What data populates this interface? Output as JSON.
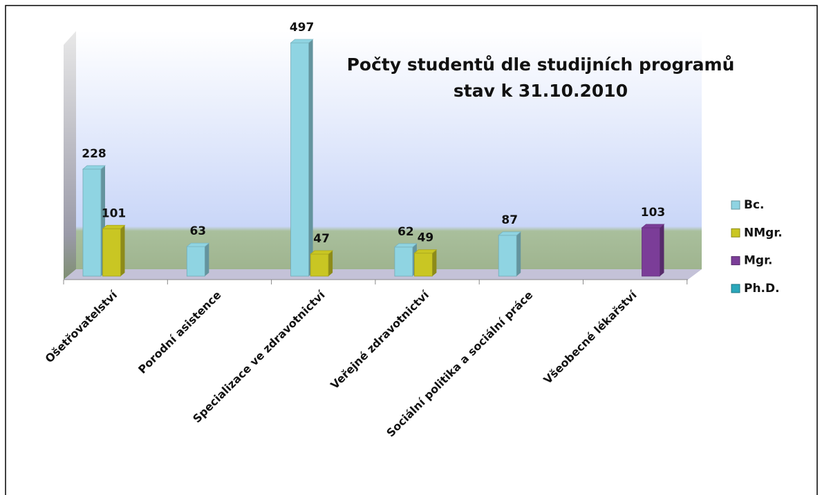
{
  "chart_data": {
    "type": "bar",
    "title": "Počty studentů dle studijních programů",
    "subtitle": "stav k 31.10.2010",
    "categories": [
      "Ošetřovatelství",
      "Porodní asistence",
      "Specializace ve zdravotnictví",
      "Veřejné zdravotnictví",
      "Sociální politika a sociální práce",
      "Všeobecné lékařství"
    ],
    "series": [
      {
        "name": "Bc.",
        "color": "#8fd4e2",
        "values": [
          228,
          63,
          497,
          62,
          87,
          null
        ]
      },
      {
        "name": "NMgr.",
        "color": "#c9c623",
        "values": [
          101,
          null,
          47,
          49,
          null,
          null
        ]
      },
      {
        "name": "Mgr.",
        "color": "#7b3d98",
        "values": [
          null,
          null,
          null,
          null,
          null,
          103
        ]
      },
      {
        "name": "Ph.D.",
        "color": "#2aa7ba",
        "values": [
          null,
          null,
          null,
          null,
          null,
          null
        ]
      }
    ],
    "legend": "right"
  }
}
